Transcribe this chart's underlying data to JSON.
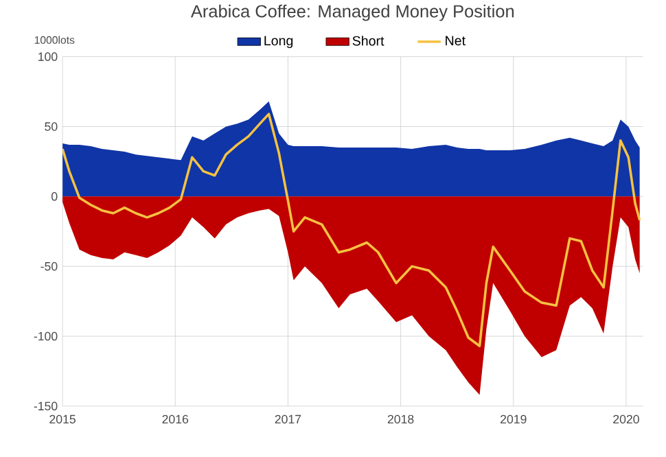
{
  "chart_data": {
    "type": "area",
    "title": "Arabica Coffee: Managed Money Position",
    "ylabel": "1000lots",
    "x": [
      2015.0,
      2015.06,
      2015.15,
      2015.25,
      2015.35,
      2015.45,
      2015.55,
      2015.65,
      2015.75,
      2015.85,
      2015.95,
      2016.05,
      2016.15,
      2016.25,
      2016.35,
      2016.45,
      2016.55,
      2016.65,
      2016.75,
      2016.83,
      2016.92,
      2017.0,
      2017.05,
      2017.15,
      2017.3,
      2017.45,
      2017.55,
      2017.7,
      2017.8,
      2017.96,
      2018.1,
      2018.25,
      2018.4,
      2018.5,
      2018.6,
      2018.7,
      2018.76,
      2018.82,
      2018.97,
      2019.1,
      2019.25,
      2019.38,
      2019.5,
      2019.6,
      2019.7,
      2019.8,
      2019.88,
      2019.95,
      2020.02,
      2020.08,
      2020.12
    ],
    "series": [
      {
        "name": "Long",
        "type": "area",
        "color": "#1035a6",
        "values": [
          38,
          37,
          37,
          36,
          34,
          33,
          32,
          30,
          29,
          28,
          27,
          26,
          43,
          40,
          45,
          50,
          52,
          55,
          62,
          68,
          45,
          37,
          36,
          36,
          36,
          35,
          35,
          35,
          35,
          35,
          34,
          36,
          37,
          35,
          34,
          34,
          33,
          33,
          33,
          34,
          37,
          40,
          42,
          40,
          38,
          36,
          40,
          55,
          50,
          40,
          35
        ]
      },
      {
        "name": "Short",
        "type": "area",
        "color": "#c00000",
        "values": [
          -4,
          -19,
          -38,
          -42,
          -44,
          -45,
          -40,
          -42,
          -44,
          -40,
          -35,
          -28,
          -15,
          -22,
          -30,
          -20,
          -15,
          -12,
          -10,
          -9,
          -14,
          -40,
          -60,
          -50,
          -62,
          -80,
          -70,
          -66,
          -75,
          -90,
          -85,
          -100,
          -110,
          -122,
          -133,
          -142,
          -95,
          -62,
          -82,
          -100,
          -115,
          -110,
          -78,
          -72,
          -80,
          -98,
          -50,
          -15,
          -22,
          -45,
          -55
        ]
      },
      {
        "name": "Net",
        "type": "line",
        "color": "#f5c242",
        "values": [
          34,
          18,
          -1,
          -6,
          -10,
          -12,
          -8,
          -12,
          -15,
          -12,
          -8,
          -2,
          28,
          18,
          15,
          30,
          37,
          43,
          52,
          59,
          31,
          -3,
          -25,
          -15,
          -20,
          -40,
          -38,
          -33,
          -40,
          -62,
          -50,
          -53,
          -65,
          -82,
          -101,
          -107,
          -62,
          -36,
          -53,
          -68,
          -76,
          -78,
          -30,
          -32,
          -53,
          -65,
          -10,
          40,
          28,
          -5,
          -17
        ]
      }
    ],
    "xlim": [
      2015,
      2020.15
    ],
    "ylim": [
      -150,
      100
    ],
    "xticks": [
      2015,
      2016,
      2017,
      2018,
      2019,
      2020
    ],
    "yticks": [
      100,
      50,
      0,
      -50,
      -100,
      -150
    ],
    "grid": true,
    "legend": "top"
  }
}
